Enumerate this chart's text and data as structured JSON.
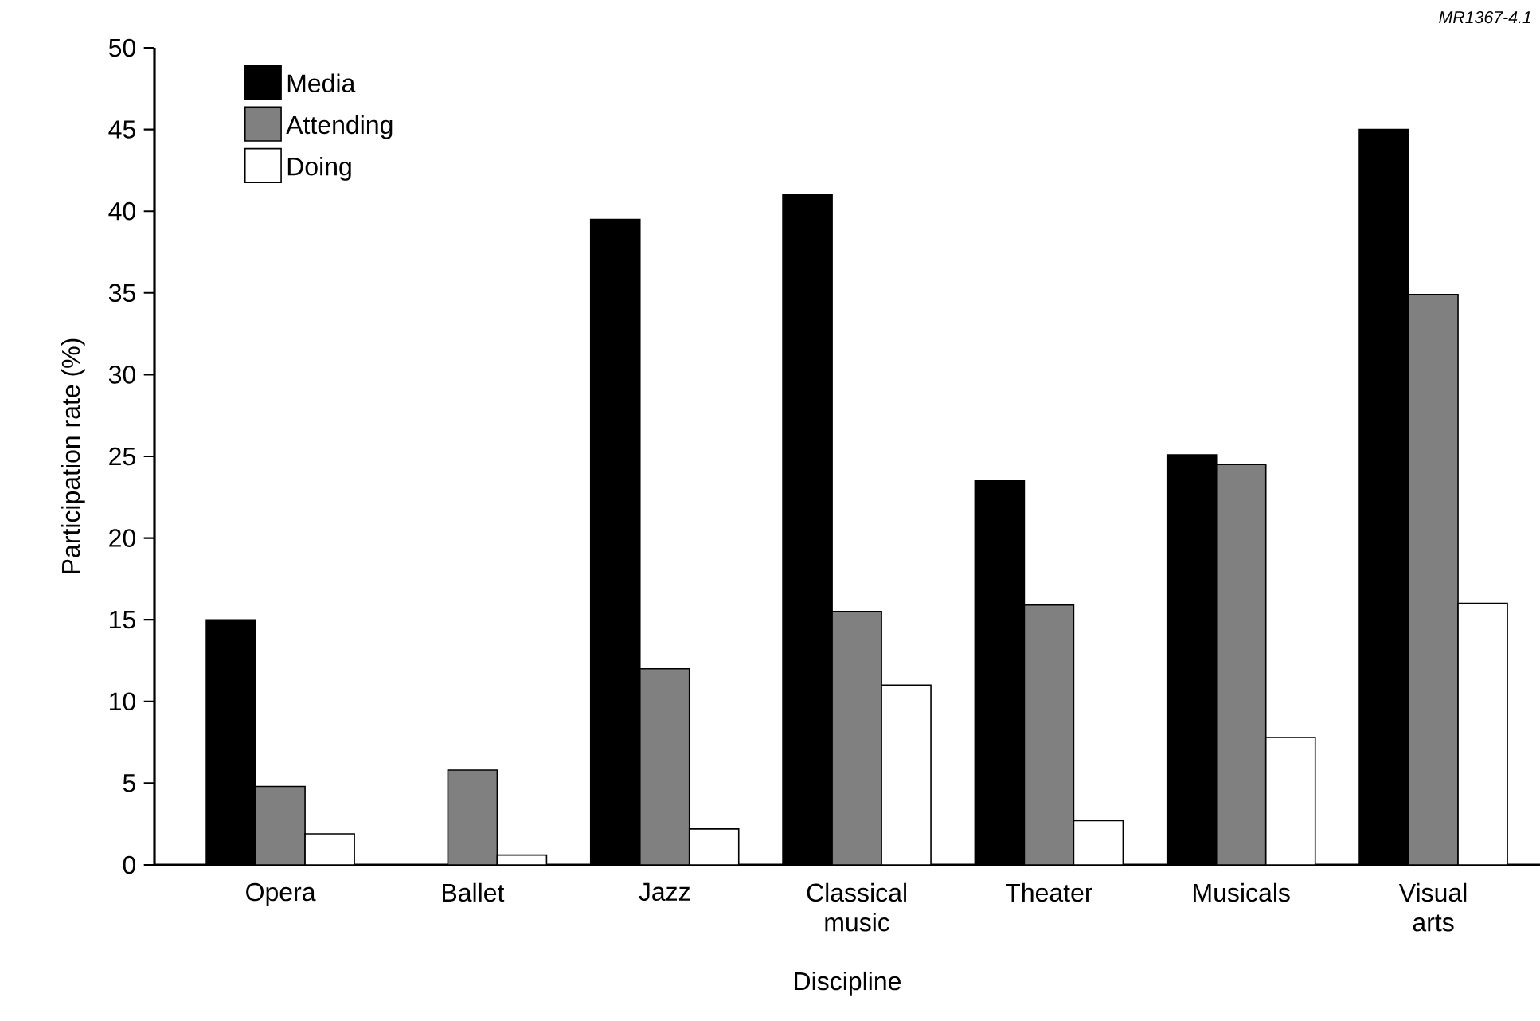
{
  "chart_data": {
    "type": "bar",
    "xlabel": "Discipline",
    "ylabel": "Participation rate (%)",
    "annotations": [
      "MR1367-4.1"
    ],
    "categories": [
      "Opera",
      "Ballet",
      "Jazz",
      "Classical music",
      "Theater",
      "Musicals",
      "Visual arts"
    ],
    "series": [
      {
        "name": "Media",
        "color": "#000000",
        "values": [
          15,
          null,
          39.5,
          41,
          23.5,
          25.1,
          45
        ]
      },
      {
        "name": "Attending",
        "color": "#808080",
        "values": [
          4.8,
          5.8,
          12,
          15.5,
          15.9,
          24.5,
          34.9
        ]
      },
      {
        "name": "Doing",
        "color": "#ffffff",
        "values": [
          1.9,
          0.6,
          2.2,
          11,
          2.7,
          7.8,
          16
        ]
      }
    ],
    "ylim": [
      0,
      50
    ],
    "yticks": [
      0,
      5,
      10,
      15,
      20,
      25,
      30,
      35,
      40,
      45,
      50
    ],
    "grid": false,
    "legend": "top left"
  }
}
